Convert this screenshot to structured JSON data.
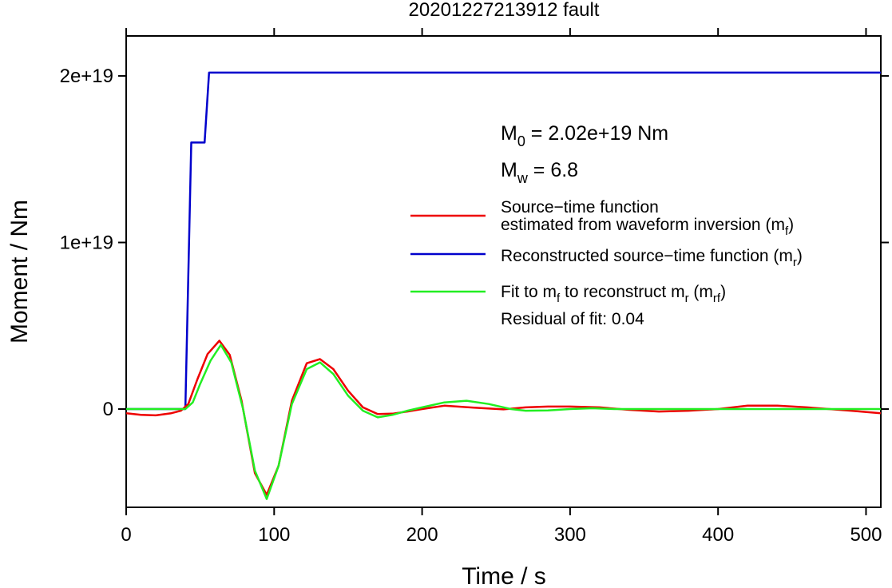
{
  "chart_data": {
    "type": "line",
    "title": "20201227213912 fault",
    "xlabel": "Time / s",
    "ylabel": "Moment / Nm",
    "xlim": [
      0,
      510
    ],
    "ylim": [
      -5.9e+18,
      2.24e+19
    ],
    "x_ticks": [
      {
        "value": 0,
        "label": "0"
      },
      {
        "value": 100,
        "label": "100"
      },
      {
        "value": 200,
        "label": "200"
      },
      {
        "value": 300,
        "label": "300"
      },
      {
        "value": 400,
        "label": "400"
      },
      {
        "value": 500,
        "label": "500"
      }
    ],
    "y_ticks": [
      {
        "value": 0,
        "label": "0"
      },
      {
        "value": 1e+19,
        "label": "1e+19"
      },
      {
        "value": 2e+19,
        "label": "2e+19"
      }
    ],
    "grid": false,
    "legend_position": "top-right",
    "annotations": {
      "m0_base": "M",
      "m0_sub": "0",
      "m0_rest": " = 2.02e+19 Nm",
      "mw_base": "M",
      "mw_sub": "w",
      "mw_rest": " = 6.8",
      "residual": "Residual of fit: 0.04"
    },
    "legend": [
      {
        "color": "#ee0000",
        "parts": [
          {
            "line": 1,
            "text": "Source−time function"
          },
          {
            "line": 2,
            "text": "estimated from waveform inversion (m"
          },
          {
            "line": 2,
            "sub": "f"
          },
          {
            "line": 2,
            "text": ")"
          }
        ]
      },
      {
        "color": "#0000cc",
        "parts": [
          {
            "line": 1,
            "text": "Reconstructed source−time function (m"
          },
          {
            "line": 1,
            "sub": "r"
          },
          {
            "line": 1,
            "text": ")"
          }
        ]
      },
      {
        "color": "#22ee22",
        "parts": [
          {
            "line": 1,
            "text": "Fit to m"
          },
          {
            "line": 1,
            "sub": "f"
          },
          {
            "line": 1,
            "text": " to reconstruct m"
          },
          {
            "line": 1,
            "sub": "r"
          },
          {
            "line": 1,
            "text": " (m"
          },
          {
            "line": 1,
            "sub": "rf"
          },
          {
            "line": 1,
            "text": ")"
          }
        ]
      }
    ],
    "series": [
      {
        "color": "#0000cc",
        "x": [
          0,
          40,
          44,
          53,
          56,
          510
        ],
        "y": [
          0,
          0,
          1.6e+19,
          1.6e+19,
          2.02e+19,
          2.02e+19
        ]
      },
      {
        "color": "#ee0000",
        "x": [
          0,
          10,
          20,
          30,
          37,
          42,
          48,
          55,
          63,
          70,
          78,
          87,
          95,
          103,
          112,
          122,
          131,
          140,
          150,
          160,
          170,
          180,
          190,
          200,
          215,
          235,
          255,
          270,
          285,
          300,
          320,
          340,
          360,
          380,
          400,
          420,
          440,
          460,
          475,
          490,
          510
        ],
        "y": [
          -2.5e+17,
          -3.5e+17,
          -3.8e+17,
          -2.6e+17,
          -1e+17,
          3e+17,
          1.75e+18,
          3.3e+18,
          4.1e+18,
          3.25e+18,
          5e+17,
          -3.85e+18,
          -5.15e+18,
          -3.4e+18,
          5e+17,
          2.75e+18,
          3e+18,
          2.4e+18,
          1.1e+18,
          1e+17,
          -3e+17,
          -2.8e+17,
          -1.5e+17,
          0,
          2e+17,
          8e+16,
          -2e+16,
          1e+17,
          1.5e+17,
          1.5e+17,
          1e+17,
          -5e+16,
          -1.5e+17,
          -1e+17,
          0,
          2e+17,
          2e+17,
          1e+17,
          0,
          -1e+17,
          -2.5e+17
        ]
      },
      {
        "color": "#22ee22",
        "x": [
          0,
          40,
          45,
          50,
          57,
          64,
          71,
          79,
          87,
          95,
          103,
          112,
          122,
          131,
          140,
          150,
          160,
          170,
          180,
          190,
          200,
          215,
          230,
          245,
          260,
          270,
          285,
          300,
          315,
          330,
          350,
          510
        ],
        "y": [
          0,
          0,
          4e+17,
          1.5e+18,
          2.9e+18,
          3.85e+18,
          2.8e+18,
          0,
          -3.7e+18,
          -5.4e+18,
          -3.4e+18,
          3e+17,
          2.4e+18,
          2.8e+18,
          2.1e+18,
          8e+17,
          -1e+17,
          -5e+17,
          -3.5e+17,
          -1e+17,
          1e+17,
          4e+17,
          5e+17,
          3e+17,
          0,
          -1e+17,
          -8e+16,
          0,
          5e+16,
          0,
          0,
          0
        ]
      }
    ]
  }
}
